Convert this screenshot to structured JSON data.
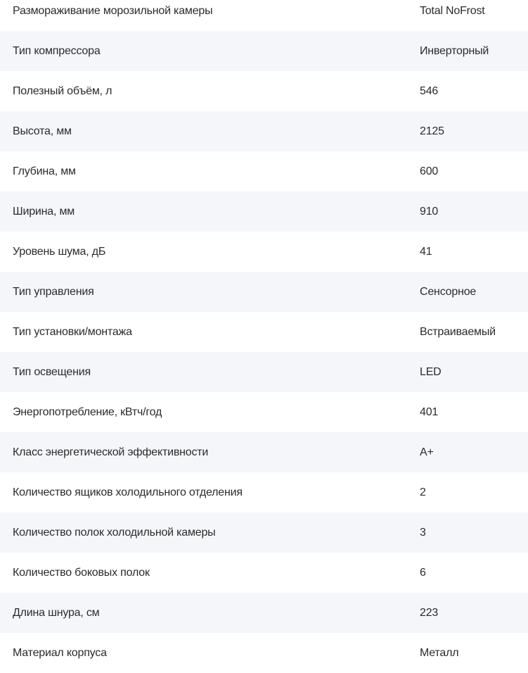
{
  "specs": [
    {
      "label": "Размораживание морозильной камеры",
      "value": "Total NoFrost"
    },
    {
      "label": "Тип компрессора",
      "value": "Инверторный"
    },
    {
      "label": "Полезный объём, л",
      "value": "546"
    },
    {
      "label": "Высота, мм",
      "value": "2125"
    },
    {
      "label": "Глубина, мм",
      "value": "600"
    },
    {
      "label": "Ширина, мм",
      "value": "910"
    },
    {
      "label": "Уровень шума, дБ",
      "value": "41"
    },
    {
      "label": "Тип управления",
      "value": "Сенсорное"
    },
    {
      "label": "Тип установки/монтажа",
      "value": "Встраиваемый"
    },
    {
      "label": "Тип освещения",
      "value": "LED"
    },
    {
      "label": "Энергопотребление, кВтч/год",
      "value": "401"
    },
    {
      "label": "Класс энергетической эффективности",
      "value": "A+"
    },
    {
      "label": "Количество ящиков холодильного отделения",
      "value": "2"
    },
    {
      "label": "Количество полок холодильной камеры",
      "value": "3"
    },
    {
      "label": "Количество боковых полок",
      "value": "6"
    },
    {
      "label": "Длина шнура, см",
      "value": "223"
    },
    {
      "label": "Материал корпуса",
      "value": "Металл"
    }
  ],
  "colors": {
    "stripe": "#f5f6fa",
    "text": "#2b2b2b"
  }
}
